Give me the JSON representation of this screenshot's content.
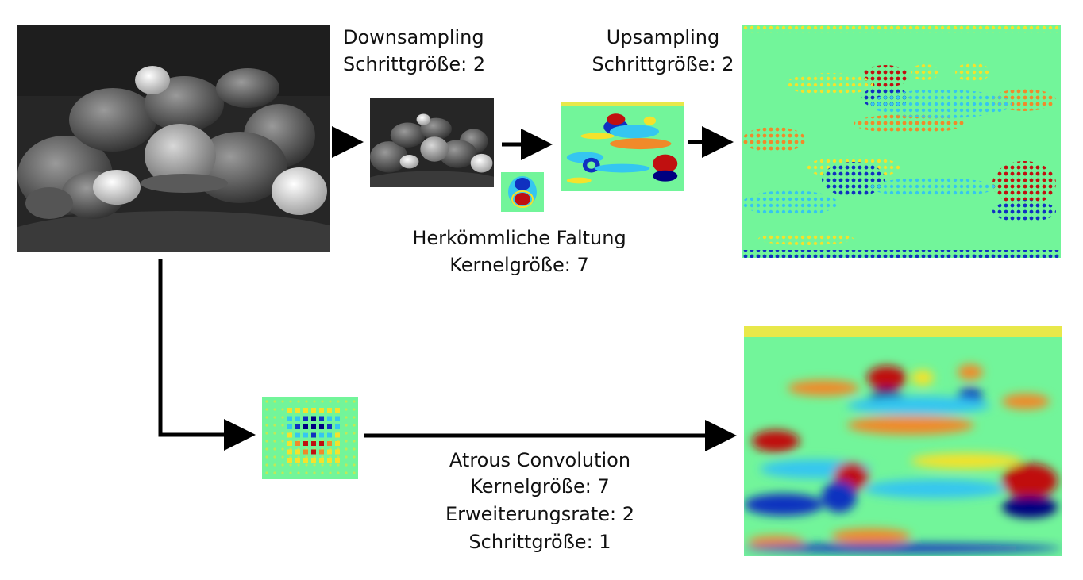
{
  "top_row": {
    "downsampling": {
      "title": "Downsampling",
      "stride": "Schrittgröße: 2"
    },
    "upsampling": {
      "title": "Upsampling",
      "stride": "Schrittgröße: 2"
    },
    "conventional": {
      "title": "Herkömmliche Faltung",
      "kernel": "Kernelgröße: 7"
    }
  },
  "bottom_row": {
    "atrous": {
      "title": "Atrous Convolution",
      "kernel": "Kernelgröße: 7",
      "rate": "Erweiterungsrate: 2",
      "stride": "Schrittgröße: 1"
    }
  },
  "colors": {
    "arrow": "#000000",
    "jet_background": "#72f59a",
    "jet_cyan": "#35c6f0",
    "jet_blue": "#1030c0",
    "jet_dark_blue": "#000080",
    "jet_yellow": "#f4e22c",
    "jet_orange": "#f08a2a",
    "jet_red": "#c01010"
  }
}
